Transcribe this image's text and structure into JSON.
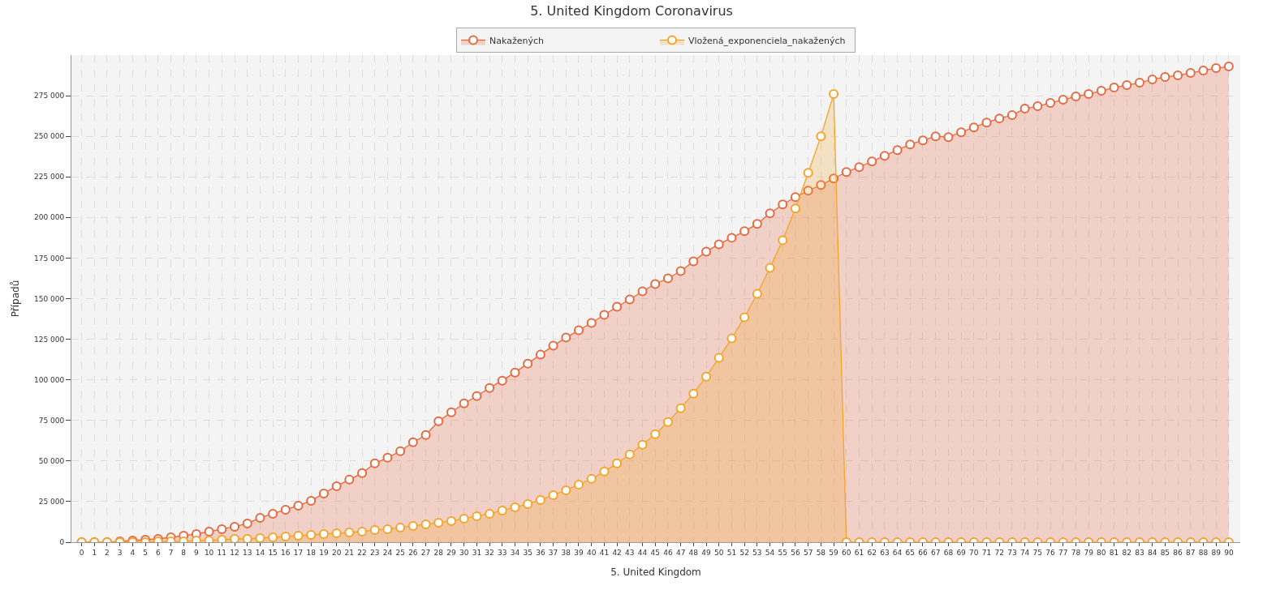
{
  "chart_data": {
    "type": "area",
    "title": "5. United Kingdom Coronavirus",
    "xlabel": "5. United Kingdom",
    "ylabel": "Případů",
    "x": [
      0,
      1,
      2,
      3,
      4,
      5,
      6,
      7,
      8,
      9,
      10,
      11,
      12,
      13,
      14,
      15,
      16,
      17,
      18,
      19,
      20,
      21,
      22,
      23,
      24,
      25,
      26,
      27,
      28,
      29,
      30,
      31,
      32,
      33,
      34,
      35,
      36,
      37,
      38,
      39,
      40,
      41,
      42,
      43,
      44,
      45,
      46,
      47,
      48,
      49,
      50,
      51,
      52,
      53,
      54,
      55,
      56,
      57,
      58,
      59,
      60,
      61,
      62,
      63,
      64,
      65,
      66,
      67,
      68,
      69,
      70,
      71,
      72,
      73,
      74,
      75,
      76,
      77,
      78,
      79,
      80,
      81,
      82,
      83,
      84,
      85,
      86,
      87,
      88,
      89,
      90
    ],
    "series": [
      {
        "name": "Nakažených",
        "color": "#e8683f",
        "values": [
          0,
          0,
          0,
          500,
          1000,
          1500,
          2000,
          3000,
          4000,
          5000,
          6500,
          8000,
          9500,
          11500,
          15000,
          17500,
          20000,
          22500,
          25500,
          30000,
          34500,
          38500,
          42500,
          48500,
          52000,
          56000,
          61500,
          66000,
          74500,
          80000,
          85500,
          90000,
          95000,
          99500,
          104500,
          110000,
          115500,
          121000,
          126000,
          130500,
          135000,
          140000,
          145000,
          149500,
          154500,
          159000,
          162500,
          167000,
          173000,
          179000,
          183500,
          187500,
          191500,
          196000,
          202500,
          208000,
          212500,
          216500,
          220000,
          224000,
          228000,
          231000,
          234500,
          238000,
          241500,
          245000,
          247500,
          250000,
          249500,
          252500,
          255500,
          258500,
          261000,
          263000,
          267000,
          268500,
          270500,
          272500,
          274500,
          276000,
          278000,
          280000,
          281500,
          283000,
          285000,
          286500,
          287500,
          289000,
          290500,
          292000,
          293000
        ]
      },
      {
        "name": "Vložená_exponenciela_nakažených",
        "color": "#f5a42a",
        "values": [
          0,
          0,
          0,
          0,
          0,
          0,
          500,
          500,
          500,
          1000,
          1000,
          1500,
          2000,
          2000,
          2500,
          3000,
          3500,
          4000,
          4500,
          5000,
          5500,
          6000,
          6500,
          7500,
          8000,
          9000,
          10000,
          11000,
          12000,
          13000,
          14500,
          16000,
          17500,
          19500,
          21500,
          23500,
          26000,
          29000,
          32000,
          35500,
          39000,
          43500,
          48500,
          54000,
          60000,
          66500,
          74000,
          82500,
          91500,
          102000,
          113500,
          125500,
          138500,
          153000,
          169000,
          186000,
          205500,
          227500,
          250000,
          276000,
          0,
          0,
          0,
          0,
          0,
          0,
          0,
          0,
          0,
          0,
          0,
          0,
          0,
          0,
          0,
          0,
          0,
          0,
          0,
          0,
          0,
          0,
          0,
          0,
          0,
          0,
          0,
          0,
          0,
          0,
          0
        ]
      }
    ],
    "xlim": [
      -0.8,
      90.9
    ],
    "xticks": [
      0,
      1,
      2,
      3,
      4,
      5,
      6,
      7,
      8,
      9,
      10,
      11,
      12,
      13,
      14,
      15,
      16,
      17,
      18,
      19,
      20,
      21,
      22,
      23,
      24,
      25,
      26,
      27,
      28,
      29,
      30,
      31,
      32,
      33,
      34,
      35,
      36,
      37,
      38,
      39,
      40,
      41,
      42,
      43,
      44,
      45,
      46,
      47,
      48,
      49,
      50,
      51,
      52,
      53,
      54,
      55,
      56,
      57,
      58,
      59,
      60,
      61,
      62,
      63,
      64,
      65,
      66,
      67,
      68,
      69,
      70,
      71,
      72,
      73,
      74,
      75,
      76,
      77,
      78,
      79,
      80,
      81,
      82,
      83,
      84,
      85,
      86,
      87,
      88,
      89,
      90
    ],
    "ylim": [
      0,
      300000
    ],
    "yticks": [
      0,
      {
        "value": 25000,
        "label": "25 000"
      },
      {
        "value": 50000,
        "label": "50 000"
      },
      {
        "value": 75000,
        "label": "75 000"
      },
      {
        "value": 100000,
        "label": "100 000"
      },
      {
        "value": 125000,
        "label": "125 000"
      },
      {
        "value": 150000,
        "label": "150 000"
      },
      {
        "value": 175000,
        "label": "175 000"
      },
      {
        "value": 200000,
        "label": "200 000"
      },
      {
        "value": 225000,
        "label": "225 000"
      },
      {
        "value": 250000,
        "label": "250 000"
      },
      {
        "value": 275000,
        "label": "275 000"
      }
    ],
    "grid": true,
    "legend": "top",
    "marker": "circle",
    "line_style": "solid"
  }
}
